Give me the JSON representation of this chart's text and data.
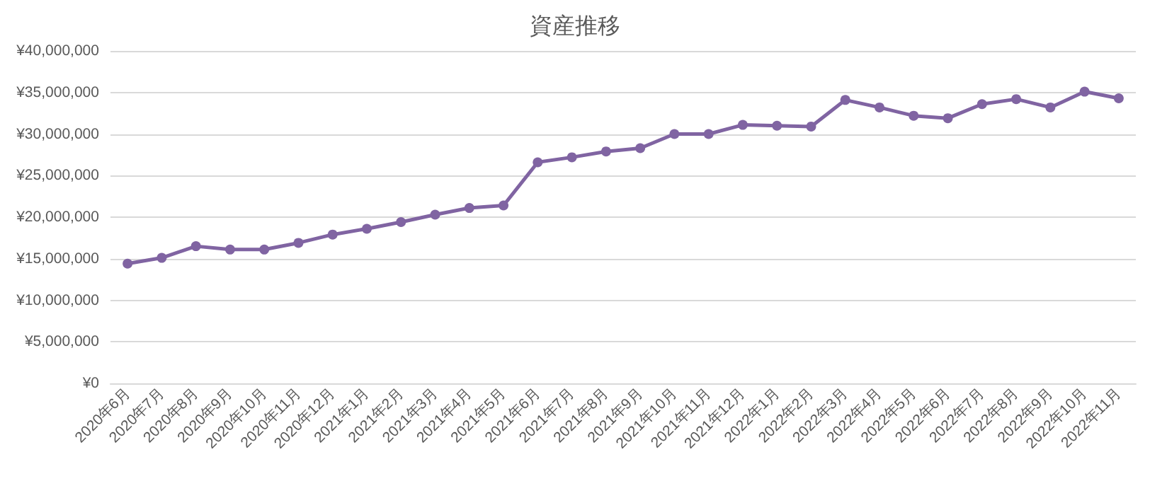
{
  "chart_data": {
    "type": "line",
    "title": "資産推移",
    "categories": [
      "2020年6月",
      "2020年7月",
      "2020年8月",
      "2020年9月",
      "2020年10月",
      "2020年11月",
      "2020年12月",
      "2021年1月",
      "2021年2月",
      "2021年3月",
      "2021年4月",
      "2021年5月",
      "2021年6月",
      "2021年7月",
      "2021年8月",
      "2021年9月",
      "2021年10月",
      "2021年11月",
      "2021年12月",
      "2022年1月",
      "2022年2月",
      "2022年3月",
      "2022年4月",
      "2022年5月",
      "2022年6月",
      "2022年7月",
      "2022年8月",
      "2022年9月",
      "2022年10月",
      "2022年11月"
    ],
    "series": [
      {
        "color": "#8064a2",
        "values": [
          14400000,
          15100000,
          16500000,
          16100000,
          16100000,
          16900000,
          17900000,
          18600000,
          19400000,
          20300000,
          21100000,
          21400000,
          26600000,
          27200000,
          27900000,
          28300000,
          30000000,
          30000000,
          31100000,
          31000000,
          30900000,
          34100000,
          33200000,
          32200000,
          31900000,
          33600000,
          34200000,
          33200000,
          35100000,
          34300000
        ]
      }
    ],
    "ylim": [
      0,
      40000000
    ],
    "yticks": [
      {
        "value": 0,
        "label": "¥0"
      },
      {
        "value": 5000000,
        "label": "¥5,000,000"
      },
      {
        "value": 10000000,
        "label": "¥10,000,000"
      },
      {
        "value": 15000000,
        "label": "¥15,000,000"
      },
      {
        "value": 20000000,
        "label": "¥20,000,000"
      },
      {
        "value": 25000000,
        "label": "¥25,000,000"
      },
      {
        "value": 30000000,
        "label": "¥30,000,000"
      },
      {
        "value": 35000000,
        "label": "¥35,000,000"
      },
      {
        "value": 40000000,
        "label": "¥40,000,000"
      }
    ],
    "grid": "y",
    "marker": "circle",
    "line_style": "solid"
  }
}
